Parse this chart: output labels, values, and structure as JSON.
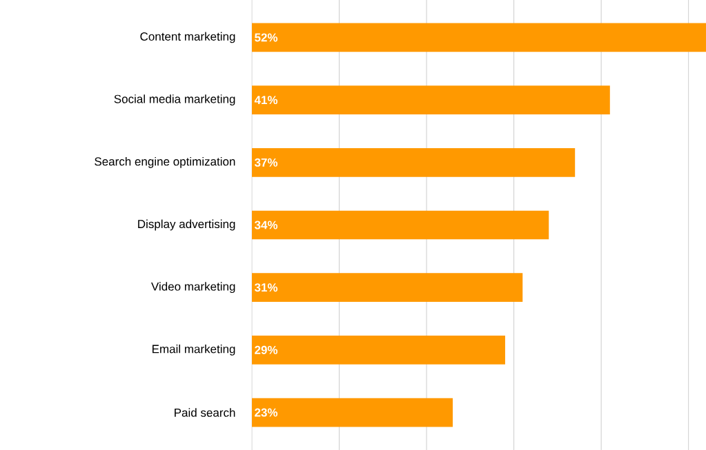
{
  "chart_data": {
    "type": "bar",
    "orientation": "horizontal",
    "categories": [
      "Content marketing",
      "Social media marketing",
      "Search engine optimization",
      "Display advertising",
      "Video marketing",
      "Email marketing",
      "Paid search"
    ],
    "values": [
      52,
      41,
      37,
      34,
      31,
      29,
      23
    ],
    "value_labels": [
      "52%",
      "41%",
      "37%",
      "34%",
      "31%",
      "29%",
      "23%"
    ],
    "color": "#ff9900",
    "xlim": [
      0,
      52
    ],
    "xticks": [
      {
        "value": 0,
        "label": null
      },
      {
        "value": 10,
        "label": null
      },
      {
        "value": 20,
        "label": null
      },
      {
        "value": 30,
        "label": null
      },
      {
        "value": 40,
        "label": null
      },
      {
        "value": 50,
        "label": null
      }
    ],
    "tick_labels": "y",
    "grid": "x"
  }
}
